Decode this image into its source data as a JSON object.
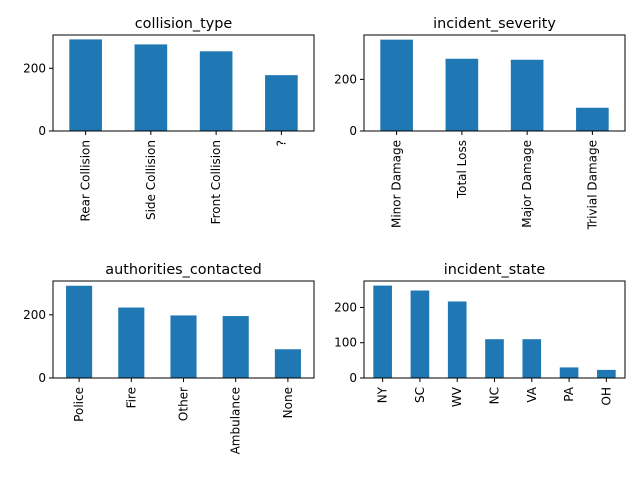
{
  "chart_data": [
    {
      "type": "bar",
      "title": "collision_type",
      "categories": [
        "Rear Collision",
        "Side Collision",
        "Front Collision",
        "?"
      ],
      "values": [
        292,
        276,
        254,
        178
      ],
      "ylim": [
        0,
        306
      ],
      "yticks": [
        0,
        200
      ],
      "color": "#1f77b4",
      "grid": false
    },
    {
      "type": "bar",
      "title": "incident_severity",
      "categories": [
        "Minor Damage",
        "Total Loss",
        "Major Damage",
        "Trivial Damage"
      ],
      "values": [
        354,
        280,
        276,
        90
      ],
      "ylim": [
        0,
        372
      ],
      "yticks": [
        0,
        200
      ],
      "color": "#1f77b4",
      "grid": false
    },
    {
      "type": "bar",
      "title": "authorities_contacted",
      "categories": [
        "Police",
        "Fire",
        "Other",
        "Ambulance",
        "None"
      ],
      "values": [
        292,
        223,
        198,
        196,
        91
      ],
      "ylim": [
        0,
        307
      ],
      "yticks": [
        0,
        200
      ],
      "color": "#1f77b4",
      "grid": false
    },
    {
      "type": "bar",
      "title": "incident_state",
      "categories": [
        "NY",
        "SC",
        "WV",
        "NC",
        "VA",
        "PA",
        "OH"
      ],
      "values": [
        262,
        248,
        217,
        110,
        110,
        30,
        23
      ],
      "ylim": [
        0,
        275
      ],
      "yticks": [
        0,
        100,
        200
      ],
      "color": "#1f77b4",
      "grid": false
    }
  ]
}
